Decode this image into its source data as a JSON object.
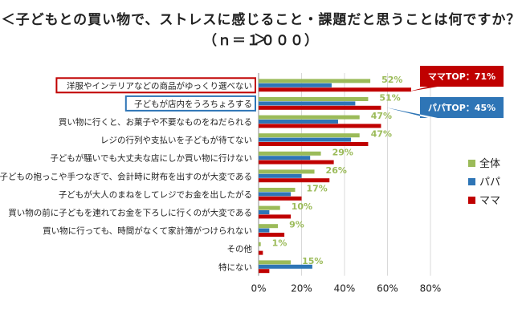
{
  "title": "＜子どもとの買い物で、ストレスに感じること・課題だと思うことは何ですか？＞",
  "subtitle": "（ｎ＝１０００）",
  "colors": {
    "all": "#9bbb59",
    "papa": "#2e75b6",
    "mama": "#c00000",
    "callout_mama": "#c00000",
    "callout_papa": "#2e75b6"
  },
  "callouts": {
    "mama": "ママTOP：71%",
    "papa": "パパTOP：45%"
  },
  "chart_data": {
    "type": "bar",
    "orientation": "horizontal",
    "categories": [
      "洋服やインテリアなどの商品がゆっくり選べない",
      "子どもが店内をうろちょろする",
      "買い物に行くと、お菓子や不要なものをねだられる",
      "レジの行列や支払いを子どもが待てない",
      "子どもが騒いでも大丈夫な店にしか買い物に行けない",
      "子どもの抱っこや手つなぎで、会計時に財布を出すのが大変である",
      "子どもが大人のまねをしてレジでお金を出したがる",
      "買い物の前に子どもを連れてお金を下ろしに行くのが大変である",
      "買い物に行っても、時間がなくて家計簿がつけられない",
      "その他",
      "特にない"
    ],
    "series": [
      {
        "name": "全体",
        "values": [
          52,
          51,
          47,
          47,
          29,
          26,
          17,
          10,
          9,
          1,
          15
        ]
      },
      {
        "name": "パパ",
        "values": [
          34,
          45,
          37,
          43,
          24,
          20,
          15,
          5,
          5,
          0,
          25
        ]
      },
      {
        "name": "ママ",
        "values": [
          71,
          57,
          57,
          51,
          35,
          33,
          20,
          15,
          12,
          2,
          5
        ]
      }
    ],
    "data_labels": [
      "52%",
      "51%",
      "47%",
      "47%",
      "29%",
      "26%",
      "17%",
      "10%",
      "9%",
      "1%",
      "15%"
    ],
    "xlim": [
      0,
      80
    ],
    "xticks": [
      "0%",
      "20%",
      "40%",
      "60%",
      "80%"
    ],
    "legend_position": "right",
    "grid": true
  }
}
